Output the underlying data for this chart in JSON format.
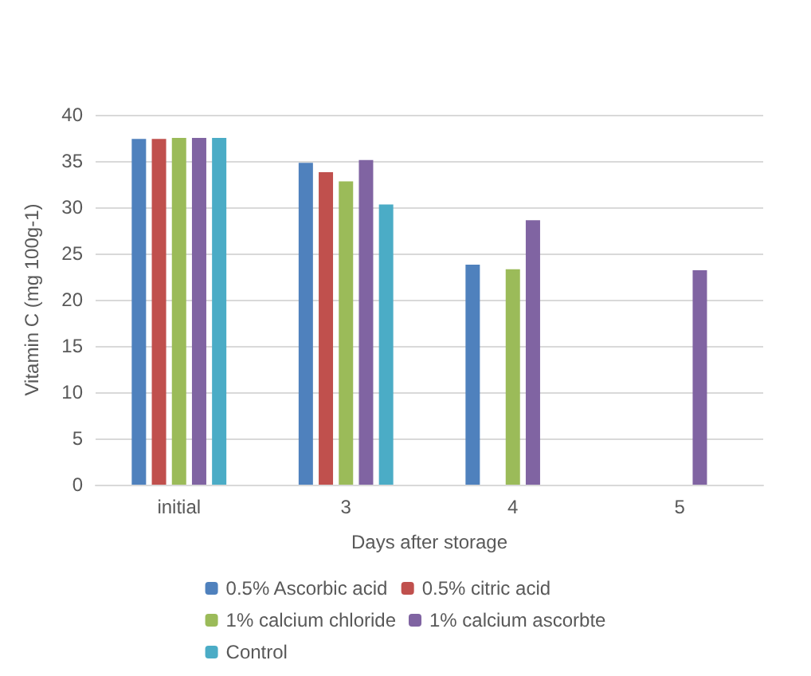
{
  "chart_data": {
    "type": "bar",
    "xlabel": "Days after storage",
    "ylabel": "Vitamin C (mg 100g-1)",
    "categories": [
      "initial",
      "3",
      "4",
      "5"
    ],
    "series": [
      {
        "name": "0.5% Ascorbic acid",
        "color": "#4f81bd",
        "values": [
          37.4,
          34.8,
          23.8,
          null
        ]
      },
      {
        "name": "0.5% citric acid",
        "color": "#c0504d",
        "values": [
          37.4,
          33.8,
          null,
          null
        ]
      },
      {
        "name": "1% calcium chloride",
        "color": "#9bbb59",
        "values": [
          37.5,
          32.8,
          23.3,
          null
        ]
      },
      {
        "name": "1% calcium ascorbte",
        "color": "#8064a2",
        "values": [
          37.5,
          35.1,
          28.6,
          23.2
        ]
      },
      {
        "name": "Control",
        "color": "#4bacc6",
        "values": [
          37.5,
          30.3,
          null,
          null
        ]
      }
    ],
    "ylim": [
      0,
      40
    ],
    "yticks": [
      0,
      5,
      10,
      15,
      20,
      25,
      30,
      35,
      40
    ],
    "grid": "y",
    "legend": "bottom"
  }
}
